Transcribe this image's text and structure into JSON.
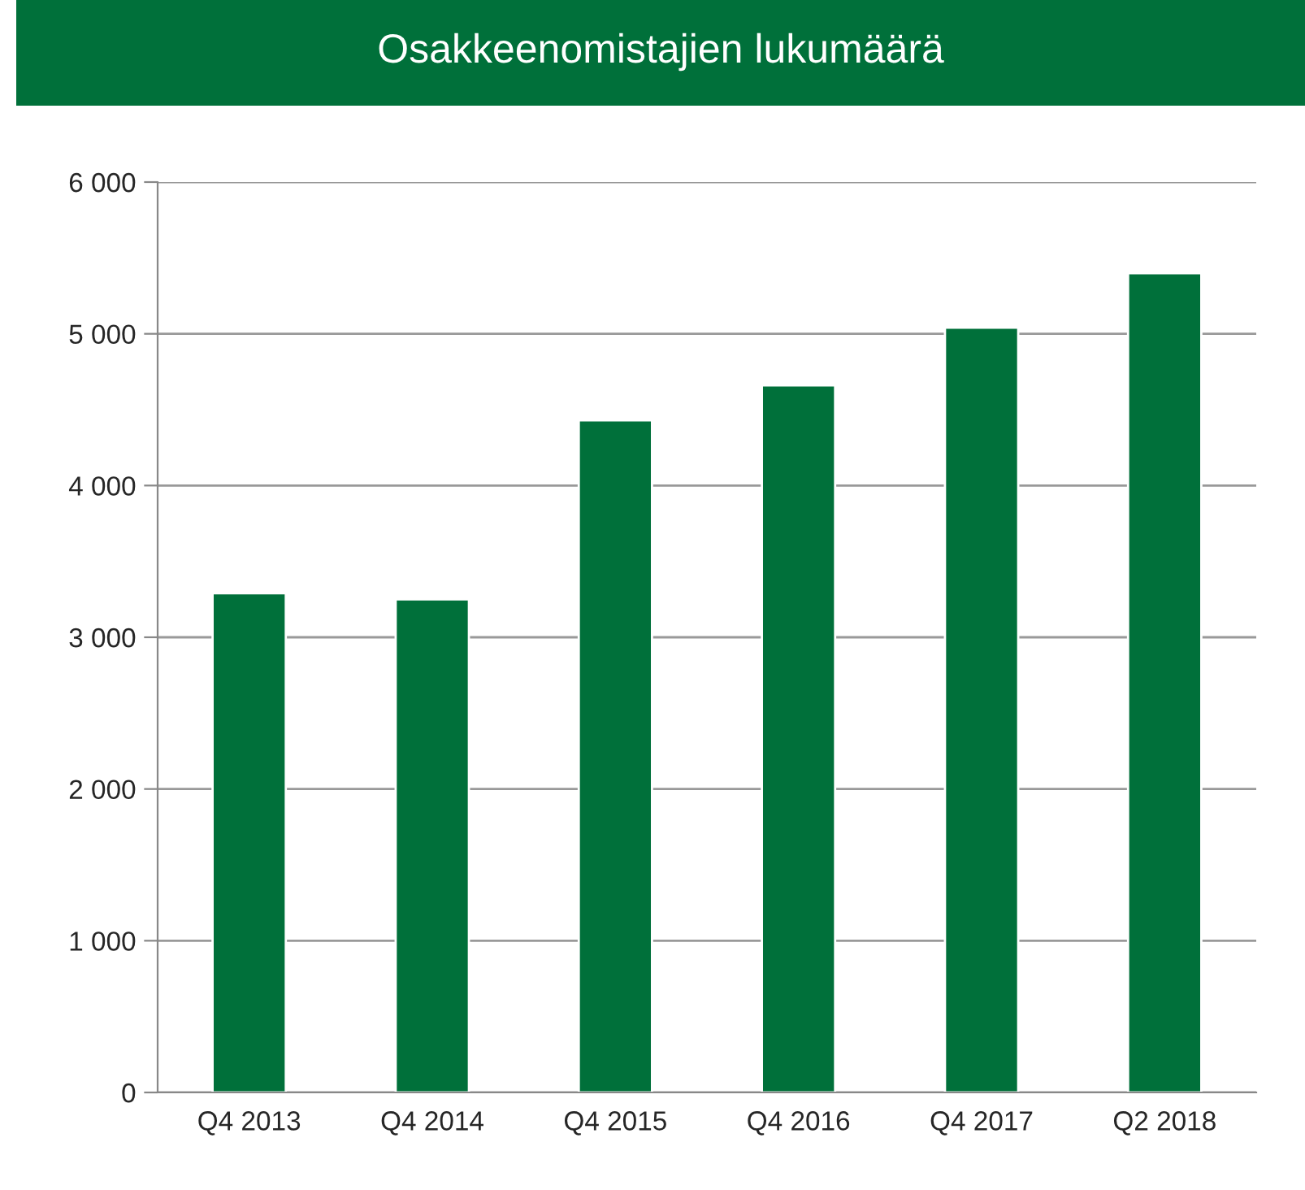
{
  "chart_data": {
    "type": "bar",
    "title": "Osakkeenomistajien lukumäärä",
    "categories": [
      "Q4 2013",
      "Q4 2014",
      "Q4 2015",
      "Q4 2016",
      "Q4 2017",
      "Q2 2018"
    ],
    "values": [
      3290,
      3250,
      4430,
      4660,
      5040,
      5400
    ],
    "color": "#00703a",
    "ylim": [
      0,
      6000
    ],
    "yticks": [
      {
        "value": 0,
        "label": "0"
      },
      {
        "value": 1000,
        "label": "1 000"
      },
      {
        "value": 2000,
        "label": "2 000"
      },
      {
        "value": 3000,
        "label": "3 000"
      },
      {
        "value": 4000,
        "label": "4 000"
      },
      {
        "value": 5000,
        "label": "5 000"
      },
      {
        "value": 6000,
        "label": "6 000"
      }
    ],
    "grid": "y"
  }
}
